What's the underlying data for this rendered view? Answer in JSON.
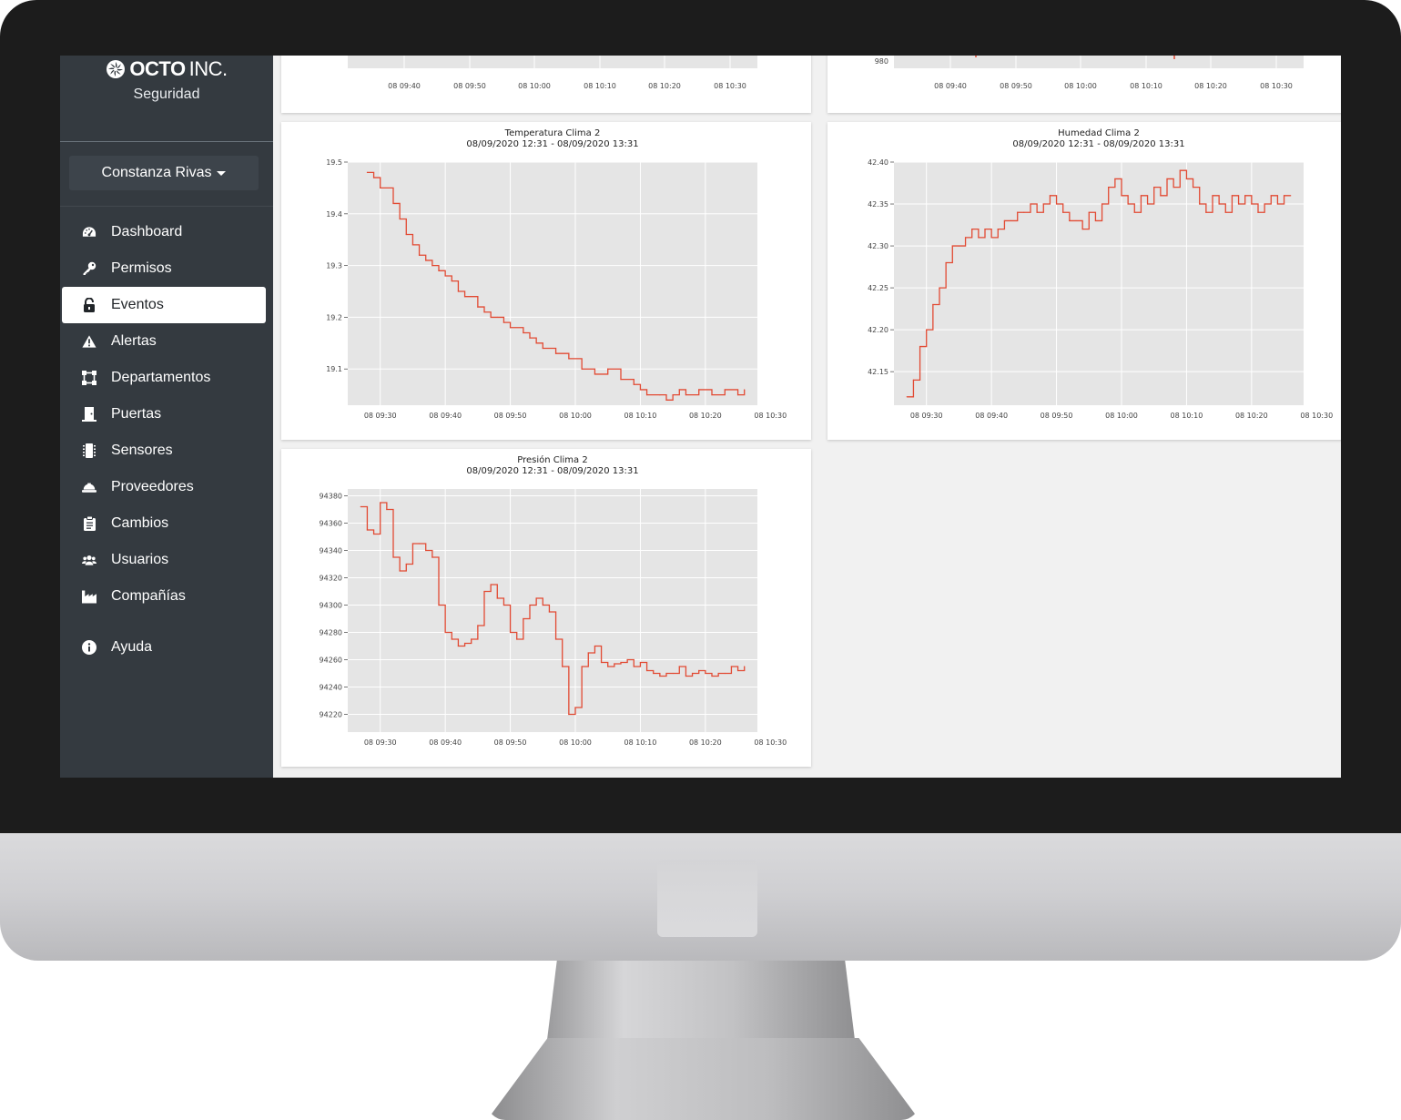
{
  "brand": {
    "name": "OCTO",
    "suffix": "INC.",
    "subtitle": "Seguridad"
  },
  "user": {
    "name": "Constanza Rivas"
  },
  "nav": [
    {
      "label": "Dashboard",
      "icon": "tachometer-icon"
    },
    {
      "label": "Permisos",
      "icon": "key-icon"
    },
    {
      "label": "Eventos",
      "icon": "unlock-icon",
      "active": true
    },
    {
      "label": "Alertas",
      "icon": "warning-icon"
    },
    {
      "label": "Departamentos",
      "icon": "vector-square-icon"
    },
    {
      "label": "Puertas",
      "icon": "door-icon"
    },
    {
      "label": "Sensores",
      "icon": "microchip-icon"
    },
    {
      "label": "Proveedores",
      "icon": "hard-hat-icon"
    },
    {
      "label": "Cambios",
      "icon": "clipboard-icon"
    },
    {
      "label": "Usuarios",
      "icon": "users-icon"
    },
    {
      "label": "Compañías",
      "icon": "industry-icon"
    }
  ],
  "help": {
    "label": "Ayuda",
    "icon": "info-circle-icon"
  },
  "colors": {
    "sidebar": "#343a40",
    "line": "#e24a33",
    "plot_bg": "#e5e5e5"
  },
  "chart_data": [
    {
      "type": "line",
      "title": "",
      "x": [
        "08 09:40",
        "08 09:50",
        "08 10:00",
        "08 10:10",
        "08 10:20",
        "08 10:30"
      ],
      "note_visible": "partially visible chart (top cut off)"
    },
    {
      "type": "line",
      "title": "",
      "ytick_labels": [
        "980"
      ],
      "x": [
        "08 09:40",
        "08 09:50",
        "08 10:00",
        "08 10:10",
        "08 10:20",
        "08 10:30"
      ]
    },
    {
      "type": "line",
      "title": "Temperatura Clima 2",
      "subtitle": "08/09/2020 12:31 - 08/09/2020 13:31",
      "xtick_labels": [
        "08 09:30",
        "08 09:40",
        "08 09:50",
        "08 10:00",
        "08 10:10",
        "08 10:20",
        "08 10:30"
      ],
      "ytick_labels": [
        "19.1",
        "19.2",
        "19.3",
        "19.4",
        "19.5"
      ],
      "ylim": [
        19.03,
        19.5
      ],
      "x_minutes_range": [
        0,
        63
      ],
      "series": [
        {
          "x": [
            3,
            4,
            5,
            7,
            8,
            9,
            10,
            11,
            12,
            13,
            14,
            15,
            16,
            17,
            18,
            20,
            21,
            22,
            23,
            24,
            25,
            27,
            28,
            29,
            30,
            32,
            34,
            36,
            38,
            40,
            42,
            44,
            45,
            46,
            48,
            49,
            50,
            51,
            52,
            54,
            56,
            58,
            60,
            61
          ],
          "values": [
            19.48,
            19.47,
            19.45,
            19.42,
            19.39,
            19.36,
            19.34,
            19.32,
            19.31,
            19.3,
            19.29,
            19.28,
            19.27,
            19.25,
            19.24,
            19.22,
            19.21,
            19.2,
            19.2,
            19.19,
            19.18,
            19.17,
            19.16,
            19.15,
            19.14,
            19.13,
            19.12,
            19.1,
            19.09,
            19.1,
            19.08,
            19.07,
            19.06,
            19.05,
            19.05,
            19.04,
            19.05,
            19.06,
            19.05,
            19.06,
            19.05,
            19.06,
            19.05,
            19.06
          ]
        }
      ]
    },
    {
      "type": "line",
      "title": "Humedad Clima 2",
      "subtitle": "08/09/2020 12:31 - 08/09/2020 13:31",
      "xtick_labels": [
        "08 09:30",
        "08 09:40",
        "08 09:50",
        "08 10:00",
        "08 10:10",
        "08 10:20",
        "08 10:30"
      ],
      "ytick_labels": [
        "42.15",
        "42.20",
        "42.25",
        "42.30",
        "42.35",
        "42.40"
      ],
      "ylim": [
        42.11,
        42.4
      ],
      "x_minutes_range": [
        0,
        63
      ],
      "series": [
        {
          "x": [
            2,
            3,
            4,
            5,
            6,
            7,
            8,
            9,
            10,
            11,
            12,
            13,
            14,
            15,
            16,
            17,
            18,
            19,
            20,
            21,
            22,
            23,
            24,
            25,
            26,
            27,
            28,
            29,
            30,
            31,
            32,
            33,
            34,
            35,
            36,
            37,
            38,
            39,
            40,
            41,
            42,
            43,
            44,
            45,
            46,
            47,
            48,
            49,
            50,
            51,
            52,
            53,
            54,
            55,
            56,
            57,
            58,
            59,
            60,
            61
          ],
          "values": [
            42.12,
            42.14,
            42.18,
            42.2,
            42.23,
            42.25,
            42.28,
            42.3,
            42.3,
            42.31,
            42.32,
            42.31,
            42.32,
            42.31,
            42.32,
            42.33,
            42.33,
            42.34,
            42.34,
            42.35,
            42.34,
            42.35,
            42.36,
            42.35,
            42.34,
            42.33,
            42.33,
            42.32,
            42.34,
            42.33,
            42.35,
            42.37,
            42.38,
            42.36,
            42.35,
            42.34,
            42.36,
            42.35,
            42.37,
            42.36,
            42.38,
            42.37,
            42.39,
            42.38,
            42.37,
            42.35,
            42.34,
            42.36,
            42.35,
            42.34,
            42.36,
            42.35,
            42.36,
            42.35,
            42.34,
            42.35,
            42.36,
            42.35,
            42.36,
            42.36
          ]
        }
      ]
    },
    {
      "type": "line",
      "title": "Presión Clima 2",
      "subtitle": "08/09/2020 12:31 - 08/09/2020 13:31",
      "xtick_labels": [
        "08 09:30",
        "08 09:40",
        "08 09:50",
        "08 10:00",
        "08 10:10",
        "08 10:20",
        "08 10:30"
      ],
      "ytick_labels": [
        "94220",
        "94240",
        "94260",
        "94280",
        "94300",
        "94320",
        "94340",
        "94360",
        "94380"
      ],
      "ylim": [
        94207,
        94385
      ],
      "x_minutes_range": [
        0,
        63
      ],
      "series": [
        {
          "x": [
            2,
            3,
            4,
            5,
            6,
            7,
            8,
            9,
            10,
            11,
            12,
            13,
            14,
            15,
            16,
            17,
            18,
            19,
            20,
            21,
            22,
            23,
            24,
            25,
            26,
            27,
            28,
            29,
            30,
            31,
            32,
            33,
            34,
            35,
            36,
            37,
            38,
            39,
            40,
            41,
            42,
            43,
            44,
            45,
            46,
            47,
            48,
            49,
            50,
            51,
            52,
            53,
            54,
            55,
            56,
            57,
            58,
            59,
            60,
            61
          ],
          "values": [
            94372,
            94355,
            94352,
            94375,
            94370,
            94335,
            94325,
            94330,
            94345,
            94345,
            94340,
            94335,
            94300,
            94280,
            94275,
            94270,
            94272,
            94275,
            94285,
            94310,
            94315,
            94305,
            94300,
            94280,
            94275,
            94290,
            94300,
            94305,
            94300,
            94295,
            94275,
            94255,
            94220,
            94225,
            94255,
            94265,
            94270,
            94258,
            94255,
            94257,
            94258,
            94260,
            94255,
            94258,
            94252,
            94250,
            94248,
            94250,
            94250,
            94255,
            94248,
            94250,
            94252,
            94250,
            94248,
            94250,
            94250,
            94255,
            94252,
            94255
          ]
        }
      ]
    }
  ]
}
